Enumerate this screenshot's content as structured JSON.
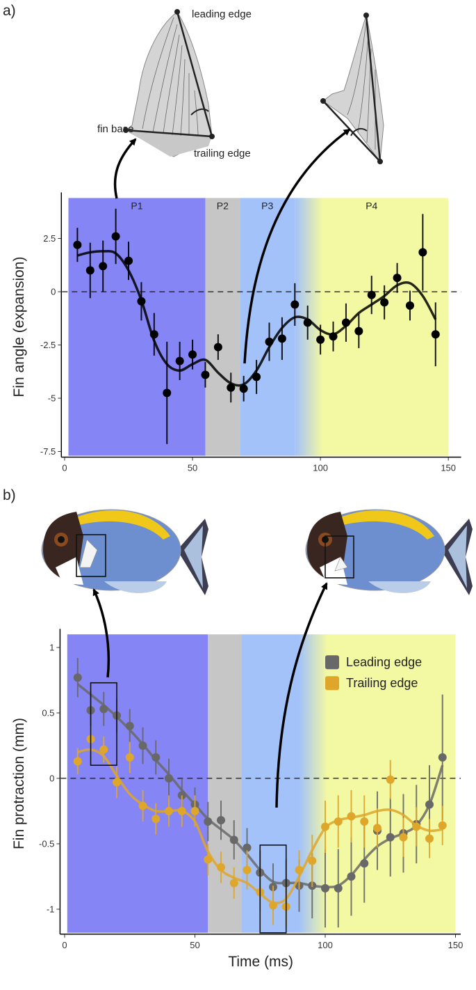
{
  "chart_data": [
    {
      "type": "scatter",
      "panel": "a)",
      "ylabel": "Fin angle (expansion)",
      "xlim": [
        -1,
        155
      ],
      "ylim": [
        -7.7,
        4.4
      ],
      "xticks": [
        0,
        50,
        100,
        150
      ],
      "yticks": [
        2.5,
        0,
        -2.5,
        -5,
        -7.5
      ],
      "hline": 0,
      "phases": [
        {
          "label": "P1",
          "start": 1.5,
          "end": 55,
          "color": "#8585f5"
        },
        {
          "label": "P2",
          "start": 55,
          "end": 68.5,
          "color": "#c6c6c6"
        },
        {
          "label": "P3",
          "start": 68.5,
          "end": 90,
          "color": "#a3c2fa"
        },
        {
          "label": "P4",
          "start": 90,
          "end": 150,
          "color": "#f3f8a2"
        }
      ],
      "annotations": [
        "leading edge",
        "fin base",
        "trailing edge"
      ],
      "x": [
        5,
        10,
        15,
        20,
        25,
        30,
        35,
        40,
        45,
        50,
        55,
        60,
        65,
        70,
        75,
        80,
        85,
        90,
        95,
        100,
        105,
        110,
        115,
        120,
        125,
        130,
        135,
        140,
        145
      ],
      "series": [
        {
          "color": "#000000",
          "values": [
            2.2,
            1.0,
            1.2,
            2.6,
            1.45,
            -0.45,
            -2.0,
            -4.75,
            -3.25,
            -2.95,
            -3.9,
            -2.6,
            -4.5,
            -4.55,
            -4.0,
            -2.35,
            -2.2,
            -0.6,
            -1.45,
            -2.25,
            -2.1,
            -1.45,
            -1.85,
            -0.15,
            -0.5,
            0.65,
            -0.65,
            1.85,
            -2.0
          ],
          "errors": [
            0.8,
            1.3,
            1.2,
            1.3,
            0.9,
            0.9,
            1.0,
            2.4,
            0.9,
            0.7,
            0.6,
            0.6,
            0.7,
            0.6,
            0.8,
            0.9,
            1.0,
            1.0,
            0.8,
            0.7,
            0.7,
            0.9,
            0.8,
            0.9,
            0.8,
            0.7,
            0.7,
            1.8,
            1.5
          ],
          "fit": [
            1.7,
            1.85,
            1.9,
            1.8,
            1.0,
            -0.4,
            -2.3,
            -3.4,
            -3.7,
            -3.4,
            -3.2,
            -3.8,
            -4.3,
            -4.35,
            -3.7,
            -2.6,
            -1.7,
            -1.2,
            -1.3,
            -1.8,
            -2.0,
            -1.6,
            -1.0,
            -0.6,
            -0.2,
            0.3,
            0.4,
            -0.2,
            -1.3
          ]
        }
      ]
    },
    {
      "type": "scatter",
      "panel": "b)",
      "ylabel": "Fin protraction (mm)",
      "xlabel": "Time (ms)",
      "xlim": [
        -1.5,
        152
      ],
      "ylim": [
        -1.18,
        1.1
      ],
      "xticks": [
        0,
        50,
        100,
        150
      ],
      "yticks": [
        1,
        0.5,
        0,
        -0.5,
        -1
      ],
      "hline": 0,
      "legend": "top-right",
      "phases": [
        {
          "start": 1,
          "end": 55,
          "color": "#8585f5"
        },
        {
          "start": 55,
          "end": 68,
          "color": "#c6c6c6"
        },
        {
          "start": 68,
          "end": 90,
          "color": "#a3c2fa"
        },
        {
          "start": 90,
          "end": 150,
          "color": "#f3f8a2"
        }
      ],
      "boxes": [
        {
          "x": [
            10,
            20
          ],
          "y": [
            0.1,
            0.73
          ]
        },
        {
          "x": [
            75,
            85
          ],
          "y": [
            -1.18,
            -0.51
          ]
        }
      ],
      "x": [
        5,
        10,
        15,
        20,
        25,
        30,
        35,
        40,
        45,
        50,
        55,
        60,
        65,
        70,
        75,
        80,
        85,
        90,
        95,
        100,
        105,
        110,
        115,
        120,
        125,
        130,
        135,
        140,
        145
      ],
      "series": [
        {
          "name": "Leading edge",
          "color": "#686868",
          "values": [
            0.77,
            0.52,
            0.53,
            0.48,
            0.4,
            0.25,
            0.16,
            0.0,
            -0.13,
            -0.2,
            -0.33,
            -0.32,
            -0.47,
            -0.53,
            -0.72,
            -0.83,
            -0.8,
            -0.82,
            -0.82,
            -0.84,
            -0.84,
            -0.75,
            -0.65,
            -0.4,
            -0.45,
            -0.42,
            -0.35,
            -0.2,
            0.16
          ],
          "errors": [
            0.15,
            0.15,
            0.13,
            0.13,
            0.13,
            0.14,
            0.13,
            0.15,
            0.13,
            0.13,
            0.15,
            0.15,
            0.15,
            0.15,
            0.17,
            0.18,
            0.18,
            0.2,
            0.25,
            0.3,
            0.3,
            0.3,
            0.3,
            0.3,
            0.3,
            0.3,
            0.3,
            0.3,
            0.48
          ],
          "fit": [
            0.72,
            0.64,
            0.56,
            0.47,
            0.37,
            0.26,
            0.14,
            0.03,
            -0.09,
            -0.2,
            -0.31,
            -0.39,
            -0.47,
            -0.58,
            -0.7,
            -0.79,
            -0.8,
            -0.8,
            -0.82,
            -0.83,
            -0.82,
            -0.74,
            -0.62,
            -0.52,
            -0.46,
            -0.42,
            -0.36,
            -0.2,
            0.1
          ]
        },
        {
          "name": "Trailing edge",
          "color": "#dea62b",
          "values": [
            0.13,
            0.3,
            0.22,
            -0.03,
            0.16,
            -0.21,
            -0.31,
            -0.25,
            -0.25,
            -0.25,
            -0.62,
            -0.68,
            -0.8,
            -0.7,
            -0.87,
            -0.97,
            -0.98,
            -0.7,
            -0.63,
            -0.37,
            -0.33,
            -0.29,
            -0.33,
            -0.38,
            -0.01,
            -0.45,
            -0.37,
            -0.46,
            -0.36
          ],
          "errors": [
            0.1,
            0.1,
            0.1,
            0.12,
            0.12,
            0.12,
            0.12,
            0.12,
            0.12,
            0.12,
            0.12,
            0.12,
            0.12,
            0.15,
            0.15,
            0.15,
            0.15,
            0.15,
            0.2,
            0.2,
            0.2,
            0.2,
            0.2,
            0.15,
            0.15,
            0.15,
            0.15,
            0.15,
            0.15
          ],
          "fit": [
            0.2,
            0.22,
            0.17,
            0.02,
            -0.12,
            -0.2,
            -0.25,
            -0.25,
            -0.25,
            -0.33,
            -0.56,
            -0.7,
            -0.76,
            -0.8,
            -0.88,
            -0.95,
            -0.92,
            -0.75,
            -0.55,
            -0.38,
            -0.32,
            -0.3,
            -0.28,
            -0.25,
            -0.24,
            -0.28,
            -0.36,
            -0.4,
            -0.39
          ]
        }
      ]
    }
  ]
}
